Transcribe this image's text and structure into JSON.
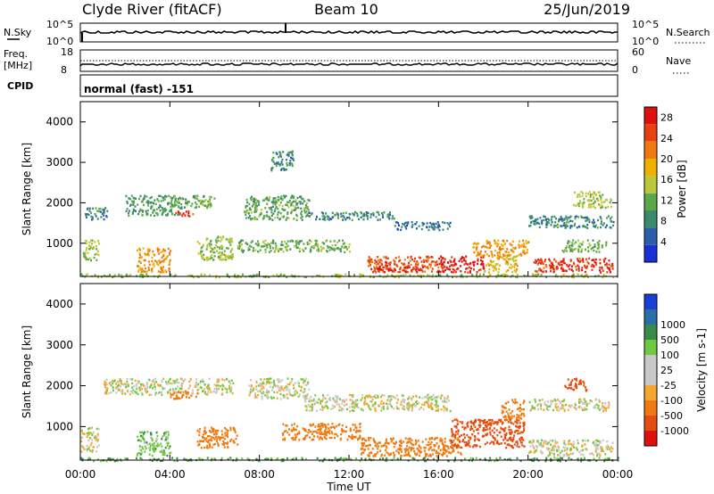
{
  "header": {
    "station": "Clyde River (fitACF)",
    "beam": "Beam 10",
    "date": "25/Jun/2019"
  },
  "strip_panels": {
    "nsky": {
      "left_label": "N.Sky",
      "right_label": "N.Search",
      "left_ticks": [
        "10^5",
        "10^0"
      ],
      "right_ticks": [
        "10^5",
        "10^0"
      ]
    },
    "freq": {
      "left_label_1": "Freq.",
      "left_label_2": "[MHz]",
      "right_label": "Nave",
      "left_ticks": [
        "18",
        "8"
      ],
      "right_ticks": [
        "60",
        "0"
      ]
    },
    "cpid": {
      "label": "CPID",
      "value": "normal (fast) -151"
    }
  },
  "axes": {
    "x_ticks": [
      "00:00",
      "04:00",
      "08:00",
      "12:00",
      "16:00",
      "20:00",
      "00:00"
    ],
    "x_label": "Time UT",
    "y_label": "Slant Range [km]",
    "y_ticks": [
      "1000",
      "2000",
      "3000",
      "4000"
    ]
  },
  "colors": {
    "power": [
      "#1a2fd6",
      "#2b5ea8",
      "#3a8a6e",
      "#5aa84a",
      "#b8c83a",
      "#f0b000",
      "#f07a10",
      "#e84010",
      "#e01010"
    ],
    "velocity": [
      "#e01010",
      "#e64d10",
      "#f07a10",
      "#f5a830",
      "#c8c8c8",
      "#c8c8c8",
      "#70c840",
      "#3a8a4a",
      "#2b6fa8",
      "#1a3fd6"
    ]
  },
  "chart_data": [
    {
      "type": "heatmap",
      "name": "Power",
      "xlabel": "Time UT",
      "ylabel": "Slant Range [km]",
      "xlim": [
        0,
        24
      ],
      "ylim": [
        180,
        4500
      ],
      "colorbar_label": "Power [dB]",
      "colorbar_ticks": [
        4,
        8,
        12,
        16,
        20,
        24,
        28
      ],
      "colorbar_range": [
        0,
        30
      ],
      "features": [
        {
          "t0": 0.0,
          "t1": 24.0,
          "r0": 180,
          "r1": 260,
          "value": 14
        },
        {
          "t0": 0.2,
          "t1": 1.2,
          "r0": 1600,
          "r1": 1900,
          "value": 8
        },
        {
          "t0": 0.1,
          "t1": 0.8,
          "r0": 600,
          "r1": 1100,
          "value": 14
        },
        {
          "t0": 2.0,
          "t1": 4.5,
          "r0": 1700,
          "r1": 2200,
          "value": 10
        },
        {
          "t0": 4.0,
          "t1": 6.0,
          "r0": 1900,
          "r1": 2200,
          "value": 12
        },
        {
          "t0": 4.2,
          "t1": 5.0,
          "r0": 1680,
          "r1": 1820,
          "value": 26
        },
        {
          "t0": 2.5,
          "t1": 4.0,
          "r0": 300,
          "r1": 900,
          "value": 20
        },
        {
          "t0": 5.2,
          "t1": 6.8,
          "r0": 600,
          "r1": 1200,
          "value": 14
        },
        {
          "t0": 7.3,
          "t1": 10.2,
          "r0": 1600,
          "r1": 2200,
          "value": 11
        },
        {
          "t0": 10.0,
          "t1": 14.0,
          "r0": 1600,
          "r1": 1800,
          "value": 8
        },
        {
          "t0": 14.0,
          "t1": 16.5,
          "r0": 1350,
          "r1": 1550,
          "value": 6
        },
        {
          "t0": 7.0,
          "t1": 12.0,
          "r0": 800,
          "r1": 1100,
          "value": 12
        },
        {
          "t0": 8.5,
          "t1": 9.5,
          "r0": 2800,
          "r1": 3300,
          "value": 8
        },
        {
          "t0": 12.8,
          "t1": 16.0,
          "r0": 300,
          "r1": 700,
          "value": 24
        },
        {
          "t0": 13.2,
          "t1": 15.3,
          "r0": 300,
          "r1": 450,
          "value": 28
        },
        {
          "t0": 16.0,
          "t1": 18.0,
          "r0": 300,
          "r1": 700,
          "value": 28
        },
        {
          "t0": 17.5,
          "t1": 20.0,
          "r0": 700,
          "r1": 1100,
          "value": 20
        },
        {
          "t0": 18.0,
          "t1": 19.5,
          "r0": 300,
          "r1": 700,
          "value": 18
        },
        {
          "t0": 20.2,
          "t1": 23.8,
          "r0": 300,
          "r1": 650,
          "value": 26
        },
        {
          "t0": 20.0,
          "t1": 23.8,
          "r0": 1400,
          "r1": 1700,
          "value": 8
        },
        {
          "t0": 21.5,
          "t1": 23.5,
          "r0": 800,
          "r1": 1100,
          "value": 12
        },
        {
          "t0": 22.0,
          "t1": 23.7,
          "r0": 1900,
          "r1": 2300,
          "value": 14
        }
      ]
    },
    {
      "type": "heatmap",
      "name": "Velocity",
      "xlabel": "Time UT",
      "ylabel": "Slant Range [km]",
      "xlim": [
        0,
        24
      ],
      "ylim": [
        180,
        4500
      ],
      "colorbar_label": "Velocity [m s-1]",
      "colorbar_ticks": [
        -1000,
        -500,
        -100,
        -25,
        25,
        100,
        500,
        1000
      ],
      "features": [
        {
          "t0": 0.0,
          "t1": 24.0,
          "r0": 180,
          "r1": 260,
          "value": 120
        },
        {
          "t0": 0.0,
          "t1": 0.8,
          "r0": 400,
          "r1": 1000,
          "value": 0
        },
        {
          "t0": 1.0,
          "t1": 6.8,
          "r0": 1800,
          "r1": 2200,
          "value": 0
        },
        {
          "t0": 2.5,
          "t1": 4.0,
          "r0": 300,
          "r1": 900,
          "value": 60
        },
        {
          "t0": 4.0,
          "t1": 5.2,
          "r0": 1700,
          "r1": 1900,
          "value": -200
        },
        {
          "t0": 5.2,
          "t1": 7.0,
          "r0": 500,
          "r1": 1000,
          "value": -200
        },
        {
          "t0": 7.5,
          "t1": 10.2,
          "r0": 1700,
          "r1": 2200,
          "value": 0
        },
        {
          "t0": 10.0,
          "t1": 16.5,
          "r0": 1400,
          "r1": 1800,
          "value": 0
        },
        {
          "t0": 9.0,
          "t1": 12.5,
          "r0": 700,
          "r1": 1100,
          "value": -200
        },
        {
          "t0": 12.5,
          "t1": 17.0,
          "r0": 300,
          "r1": 750,
          "value": -200
        },
        {
          "t0": 16.5,
          "t1": 19.8,
          "r0": 500,
          "r1": 1200,
          "value": -600
        },
        {
          "t0": 18.8,
          "t1": 19.8,
          "r0": 1200,
          "r1": 1700,
          "value": -400
        },
        {
          "t0": 20.0,
          "t1": 23.8,
          "r0": 300,
          "r1": 700,
          "value": 0
        },
        {
          "t0": 20.0,
          "t1": 23.6,
          "r0": 1400,
          "r1": 1700,
          "value": 0
        },
        {
          "t0": 21.6,
          "t1": 22.6,
          "r0": 1900,
          "r1": 2200,
          "value": -700
        }
      ]
    }
  ]
}
